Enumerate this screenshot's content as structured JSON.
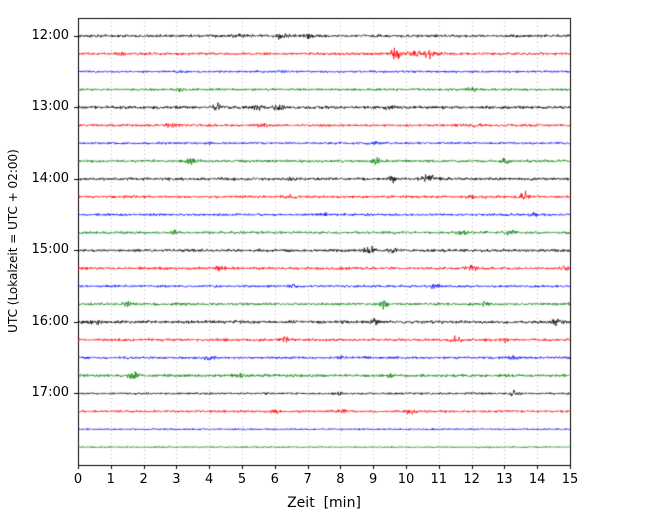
{
  "chart_data": {
    "type": "line",
    "subtype": "helicorder-dayplot-seismogram",
    "title": "",
    "xlabel": "Zeit  [min]",
    "ylabel": "UTC (Lokalzeit = UTC + 02:00)",
    "xlim": [
      0,
      15
    ],
    "x_ticks": [
      "0",
      "1",
      "2",
      "3",
      "4",
      "5",
      "6",
      "7",
      "8",
      "9",
      "10",
      "11",
      "12",
      "13",
      "14",
      "15"
    ],
    "y_tick_labels": [
      "12:00",
      "13:00",
      "14:00",
      "15:00",
      "16:00",
      "17:00"
    ],
    "grid": "vertical-dotted",
    "grid_color": "#b0b0b0",
    "minutes_per_row": 15,
    "trace_colors_cycle": [
      "#000000",
      "#ff0000",
      "#0000ff",
      "#008000"
    ],
    "rows": [
      {
        "time": "12:00",
        "color": "black",
        "noise": 1.3,
        "events": [
          {
            "t": 6.2,
            "amp": 2.5
          },
          {
            "t": 7.0,
            "amp": 2.0
          },
          {
            "t": 5.0,
            "amp": 1.2
          }
        ]
      },
      {
        "time": "12:15",
        "color": "red",
        "noise": 1.2,
        "events": [
          {
            "t": 9.7,
            "amp": 3.5,
            "w": 0.12
          },
          {
            "t": 10.6,
            "amp": 3.0,
            "w": 0.3
          },
          {
            "t": 1.3,
            "amp": 1.5
          }
        ]
      },
      {
        "time": "12:30",
        "color": "blue",
        "noise": 1.0,
        "events": [
          {
            "t": 3.0,
            "amp": 1.2
          },
          {
            "t": 6.2,
            "amp": 1.0
          }
        ]
      },
      {
        "time": "12:45",
        "color": "green",
        "noise": 1.1,
        "events": [
          {
            "t": 3.1,
            "amp": 1.5
          },
          {
            "t": 12.0,
            "amp": 1.0
          }
        ]
      },
      {
        "time": "13:00",
        "color": "black",
        "noise": 1.4,
        "events": [
          {
            "t": 4.3,
            "amp": 2.8
          },
          {
            "t": 5.5,
            "amp": 2.2
          },
          {
            "t": 6.1,
            "amp": 2.5
          },
          {
            "t": 9.5,
            "amp": 1.5
          }
        ]
      },
      {
        "time": "13:15",
        "color": "red",
        "noise": 1.2,
        "events": [
          {
            "t": 2.8,
            "amp": 2.0
          },
          {
            "t": 5.6,
            "amp": 1.5
          },
          {
            "t": 12.1,
            "amp": 1.5
          }
        ]
      },
      {
        "time": "13:30",
        "color": "blue",
        "noise": 1.0,
        "events": [
          {
            "t": 4.0,
            "amp": 1.0
          },
          {
            "t": 9.0,
            "amp": 1.0
          }
        ]
      },
      {
        "time": "13:45",
        "color": "green",
        "noise": 1.2,
        "events": [
          {
            "t": 3.4,
            "amp": 3.2
          },
          {
            "t": 9.1,
            "amp": 2.0
          },
          {
            "t": 13.0,
            "amp": 1.2
          }
        ]
      },
      {
        "time": "14:00",
        "color": "black",
        "noise": 1.3,
        "events": [
          {
            "t": 9.6,
            "amp": 2.5
          },
          {
            "t": 10.7,
            "amp": 3.2,
            "w": 0.15
          },
          {
            "t": 6.5,
            "amp": 1.5
          }
        ]
      },
      {
        "time": "14:15",
        "color": "red",
        "noise": 1.2,
        "events": [
          {
            "t": 13.6,
            "amp": 3.5
          },
          {
            "t": 12.0,
            "amp": 1.5
          },
          {
            "t": 6.5,
            "amp": 1.2
          }
        ]
      },
      {
        "time": "14:30",
        "color": "blue",
        "noise": 1.1,
        "events": [
          {
            "t": 7.5,
            "amp": 1.2
          },
          {
            "t": 13.9,
            "amp": 1.5
          }
        ]
      },
      {
        "time": "14:45",
        "color": "green",
        "noise": 1.2,
        "events": [
          {
            "t": 2.9,
            "amp": 2.2
          },
          {
            "t": 11.7,
            "amp": 2.0
          },
          {
            "t": 13.2,
            "amp": 2.0
          }
        ]
      },
      {
        "time": "15:00",
        "color": "black",
        "noise": 1.3,
        "events": [
          {
            "t": 8.9,
            "amp": 3.3
          },
          {
            "t": 9.6,
            "amp": 2.0
          }
        ]
      },
      {
        "time": "15:15",
        "color": "red",
        "noise": 1.2,
        "events": [
          {
            "t": 4.3,
            "amp": 2.0
          },
          {
            "t": 12.0,
            "amp": 2.2
          },
          {
            "t": 14.8,
            "amp": 1.5
          }
        ]
      },
      {
        "time": "15:30",
        "color": "blue",
        "noise": 1.1,
        "events": [
          {
            "t": 6.6,
            "amp": 1.8
          },
          {
            "t": 10.9,
            "amp": 2.2
          }
        ]
      },
      {
        "time": "15:45",
        "color": "green",
        "noise": 1.2,
        "events": [
          {
            "t": 1.5,
            "amp": 2.0
          },
          {
            "t": 9.3,
            "amp": 2.8
          },
          {
            "t": 12.4,
            "amp": 1.5
          }
        ]
      },
      {
        "time": "16:00",
        "color": "black",
        "noise": 1.4,
        "events": [
          {
            "t": 9.0,
            "amp": 2.8
          },
          {
            "t": 14.6,
            "amp": 2.5
          },
          {
            "t": 0.5,
            "amp": 1.5
          }
        ]
      },
      {
        "time": "16:15",
        "color": "red",
        "noise": 1.2,
        "events": [
          {
            "t": 6.3,
            "amp": 2.2
          },
          {
            "t": 11.5,
            "amp": 2.5
          },
          {
            "t": 13.0,
            "amp": 1.5
          }
        ]
      },
      {
        "time": "16:30",
        "color": "blue",
        "noise": 1.1,
        "events": [
          {
            "t": 4.0,
            "amp": 2.0
          },
          {
            "t": 8.0,
            "amp": 1.2
          },
          {
            "t": 13.3,
            "amp": 1.5
          }
        ]
      },
      {
        "time": "16:45",
        "color": "green",
        "noise": 1.3,
        "events": [
          {
            "t": 1.7,
            "amp": 3.0
          },
          {
            "t": 5.0,
            "amp": 1.2
          },
          {
            "t": 9.5,
            "amp": 1.2
          }
        ]
      },
      {
        "time": "17:00",
        "color": "black",
        "noise": 1.0,
        "events": [
          {
            "t": 13.3,
            "amp": 2.2
          },
          {
            "t": 8.0,
            "amp": 1.0
          }
        ]
      },
      {
        "time": "17:15",
        "color": "red",
        "noise": 1.1,
        "events": [
          {
            "t": 8.1,
            "amp": 1.8
          },
          {
            "t": 10.1,
            "amp": 1.8
          },
          {
            "t": 6.0,
            "amp": 1.2
          }
        ]
      },
      {
        "time": "17:30",
        "color": "blue",
        "noise": 0.8,
        "events": []
      },
      {
        "time": "17:45",
        "color": "green",
        "noise": 0.7,
        "events": []
      }
    ]
  }
}
